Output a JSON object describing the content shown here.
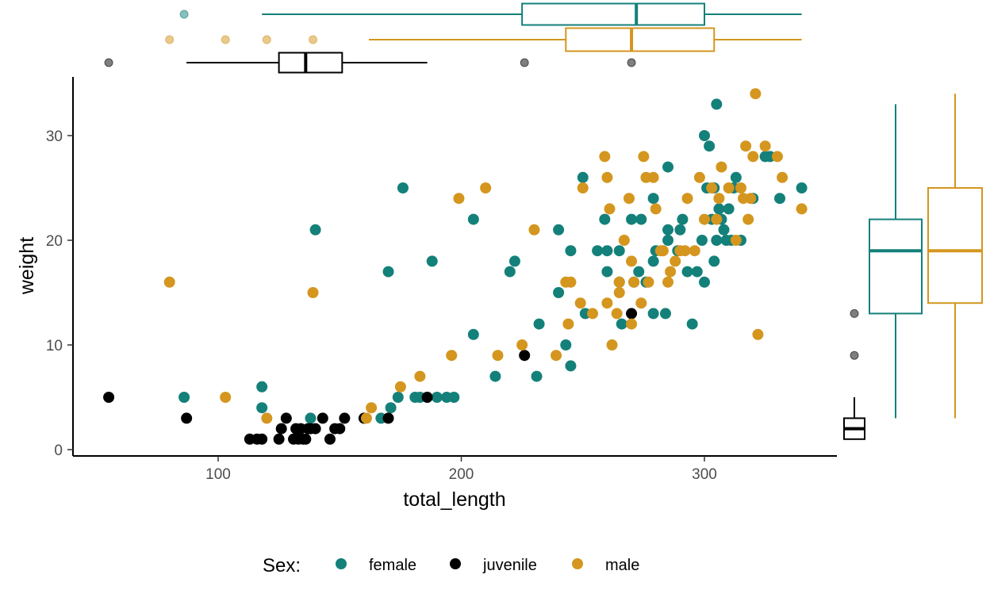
{
  "chart_data": {
    "type": "scatter",
    "title": "",
    "xlabel": "total_length",
    "ylabel": "weight",
    "xlim": [
      42,
      356
    ],
    "ylim": [
      -0.5,
      35.5
    ],
    "x_ticks": [
      100,
      200,
      300
    ],
    "y_ticks": [
      0,
      10,
      20,
      30
    ],
    "grid": false,
    "legend_position": "bottom",
    "legend": {
      "title": "Sex:",
      "entries": [
        "female",
        "juvenile",
        "male"
      ]
    },
    "colors": {
      "female": "#14807a",
      "juvenile": "#000000",
      "male": "#d4961e"
    },
    "series": [
      {
        "name": "female",
        "points": [
          [
            86,
            5
          ],
          [
            118,
            6
          ],
          [
            118,
            4
          ],
          [
            138,
            3
          ],
          [
            140,
            21
          ],
          [
            170,
            17
          ],
          [
            176,
            25
          ],
          [
            167,
            3
          ],
          [
            171,
            4
          ],
          [
            174,
            5
          ],
          [
            181,
            5
          ],
          [
            183,
            5
          ],
          [
            188,
            18
          ],
          [
            190,
            5
          ],
          [
            194,
            5
          ],
          [
            197,
            5
          ],
          [
            205,
            22
          ],
          [
            205,
            11
          ],
          [
            214,
            7
          ],
          [
            220,
            17
          ],
          [
            222,
            18
          ],
          [
            231,
            7
          ],
          [
            232,
            12
          ],
          [
            240,
            15
          ],
          [
            240,
            21
          ],
          [
            243,
            10
          ],
          [
            245,
            19
          ],
          [
            245,
            8
          ],
          [
            250,
            26
          ],
          [
            251,
            13
          ],
          [
            256,
            19
          ],
          [
            259,
            22
          ],
          [
            260,
            17
          ],
          [
            260,
            19
          ],
          [
            265,
            19
          ],
          [
            265,
            16
          ],
          [
            266,
            12
          ],
          [
            270,
            22
          ],
          [
            271,
            16
          ],
          [
            273,
            17
          ],
          [
            274,
            22
          ],
          [
            276,
            16
          ],
          [
            279,
            24
          ],
          [
            279,
            18
          ],
          [
            279,
            13
          ],
          [
            280,
            19
          ],
          [
            284,
            13
          ],
          [
            285,
            21
          ],
          [
            285,
            20
          ],
          [
            285,
            27
          ],
          [
            289,
            19
          ],
          [
            290,
            21
          ],
          [
            291,
            22
          ],
          [
            293,
            17
          ],
          [
            295,
            12
          ],
          [
            297,
            17
          ],
          [
            299,
            20
          ],
          [
            300,
            30
          ],
          [
            300,
            16
          ],
          [
            301,
            25
          ],
          [
            302,
            29
          ],
          [
            303,
            22
          ],
          [
            305,
            33
          ],
          [
            304,
            25
          ],
          [
            304,
            18
          ],
          [
            305,
            20
          ],
          [
            306,
            23
          ],
          [
            307,
            22
          ],
          [
            308,
            21
          ],
          [
            309,
            20
          ],
          [
            310,
            23
          ],
          [
            311,
            20
          ],
          [
            312,
            25
          ],
          [
            313,
            26
          ],
          [
            315,
            20
          ],
          [
            320,
            24
          ],
          [
            325,
            28
          ],
          [
            327,
            28
          ],
          [
            331,
            24
          ],
          [
            340,
            25
          ]
        ]
      },
      {
        "name": "juvenile",
        "points": [
          [
            55,
            5
          ],
          [
            87,
            3
          ],
          [
            113,
            1
          ],
          [
            116,
            1
          ],
          [
            118,
            1
          ],
          [
            125,
            1
          ],
          [
            126,
            2
          ],
          [
            128,
            3
          ],
          [
            131,
            1
          ],
          [
            132,
            2
          ],
          [
            133,
            1
          ],
          [
            134,
            2
          ],
          [
            135,
            1
          ],
          [
            136,
            1
          ],
          [
            137,
            2
          ],
          [
            138,
            2
          ],
          [
            140,
            2
          ],
          [
            143,
            3
          ],
          [
            146,
            1
          ],
          [
            148,
            2
          ],
          [
            150,
            2
          ],
          [
            152,
            3
          ],
          [
            160,
            3
          ],
          [
            170,
            3
          ],
          [
            186,
            5
          ],
          [
            226,
            9
          ],
          [
            270,
            13
          ]
        ]
      },
      {
        "name": "male",
        "points": [
          [
            80,
            16
          ],
          [
            103,
            5
          ],
          [
            120,
            3
          ],
          [
            139,
            15
          ],
          [
            161,
            3
          ],
          [
            163,
            4
          ],
          [
            175,
            6
          ],
          [
            183,
            7
          ],
          [
            196,
            9
          ],
          [
            199,
            24
          ],
          [
            210,
            25
          ],
          [
            215,
            9
          ],
          [
            225,
            10
          ],
          [
            230,
            21
          ],
          [
            239,
            9
          ],
          [
            243,
            16
          ],
          [
            244,
            12
          ],
          [
            245,
            16
          ],
          [
            249,
            14
          ],
          [
            250,
            25
          ],
          [
            254,
            13
          ],
          [
            259,
            28
          ],
          [
            260,
            14
          ],
          [
            260,
            26
          ],
          [
            261,
            23
          ],
          [
            262,
            10
          ],
          [
            264,
            13
          ],
          [
            265,
            15
          ],
          [
            265,
            16
          ],
          [
            267,
            20
          ],
          [
            269,
            24
          ],
          [
            270,
            12
          ],
          [
            270,
            18
          ],
          [
            271,
            16
          ],
          [
            274,
            14
          ],
          [
            275,
            28
          ],
          [
            276,
            26
          ],
          [
            277,
            16
          ],
          [
            279,
            26
          ],
          [
            280,
            23
          ],
          [
            282,
            19
          ],
          [
            283,
            19
          ],
          [
            285,
            16
          ],
          [
            286,
            17
          ],
          [
            288,
            18
          ],
          [
            290,
            19
          ],
          [
            292,
            19
          ],
          [
            293,
            24
          ],
          [
            296,
            19
          ],
          [
            298,
            26
          ],
          [
            300,
            22
          ],
          [
            303,
            25
          ],
          [
            305,
            22
          ],
          [
            306,
            24
          ],
          [
            307,
            27
          ],
          [
            310,
            25
          ],
          [
            313,
            20
          ],
          [
            315,
            25
          ],
          [
            316,
            24
          ],
          [
            317,
            29
          ],
          [
            318,
            22
          ],
          [
            319,
            24
          ],
          [
            320,
            28
          ],
          [
            321,
            34
          ],
          [
            322,
            11
          ],
          [
            325,
            29
          ],
          [
            330,
            28
          ],
          [
            332,
            26
          ],
          [
            340,
            23
          ]
        ]
      }
    ],
    "marginal_boxplots": {
      "total_length": [
        {
          "name": "female",
          "whisker_low": 118,
          "q1": 225,
          "median": 272,
          "q3": 300,
          "whisker_high": 340,
          "outliers": [
            86
          ]
        },
        {
          "name": "male",
          "whisker_low": 162,
          "q1": 243,
          "median": 270,
          "q3": 304,
          "whisker_high": 340,
          "outliers": [
            80,
            103,
            120,
            139
          ]
        },
        {
          "name": "juvenile",
          "whisker_low": 87,
          "q1": 125,
          "median": 136,
          "q3": 151,
          "whisker_high": 186,
          "outliers": [
            55,
            226,
            270
          ]
        }
      ],
      "weight": [
        {
          "name": "juvenile",
          "whisker_low": 1,
          "q1": 1,
          "median": 2,
          "q3": 3,
          "whisker_high": 5,
          "outliers": [
            9,
            13
          ]
        },
        {
          "name": "female",
          "whisker_low": 3,
          "q1": 13,
          "median": 19,
          "q3": 22,
          "whisker_high": 33,
          "outliers": []
        },
        {
          "name": "male",
          "whisker_low": 3,
          "q1": 14,
          "median": 19,
          "q3": 25,
          "whisker_high": 34,
          "outliers": []
        }
      ]
    }
  }
}
